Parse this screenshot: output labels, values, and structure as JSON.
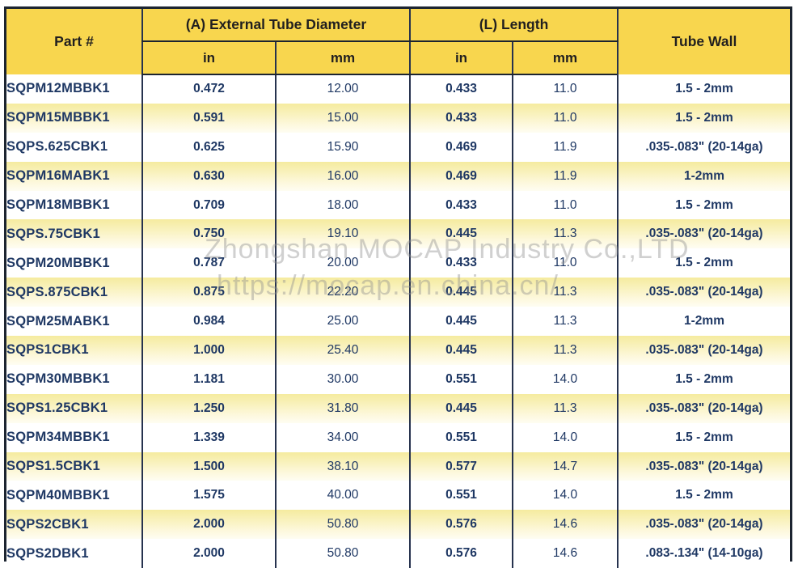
{
  "table": {
    "header": {
      "part": "Part #",
      "diameter_group": "(A) External Tube Diameter",
      "length_group": "(L) Length",
      "tube_wall": "Tube Wall",
      "in_label": "in",
      "mm_label": "mm"
    },
    "rows": [
      {
        "part": "SQPM12MBBK1",
        "dia_in": "0.472",
        "dia_mm": "12.00",
        "len_in": "0.433",
        "len_mm": "11.0",
        "wall": "1.5 - 2mm"
      },
      {
        "part": "SQPM15MBBK1",
        "dia_in": "0.591",
        "dia_mm": "15.00",
        "len_in": "0.433",
        "len_mm": "11.0",
        "wall": "1.5 - 2mm"
      },
      {
        "part": "SQPS.625CBK1",
        "dia_in": "0.625",
        "dia_mm": "15.90",
        "len_in": "0.469",
        "len_mm": "11.9",
        "wall": ".035-.083\" (20-14ga)"
      },
      {
        "part": "SQPM16MABK1",
        "dia_in": "0.630",
        "dia_mm": "16.00",
        "len_in": "0.469",
        "len_mm": "11.9",
        "wall": "1-2mm"
      },
      {
        "part": "SQPM18MBBK1",
        "dia_in": "0.709",
        "dia_mm": "18.00",
        "len_in": "0.433",
        "len_mm": "11.0",
        "wall": "1.5 - 2mm"
      },
      {
        "part": "SQPS.75CBK1",
        "dia_in": "0.750",
        "dia_mm": "19.10",
        "len_in": "0.445",
        "len_mm": "11.3",
        "wall": ".035-.083\" (20-14ga)"
      },
      {
        "part": "SQPM20MBBK1",
        "dia_in": "0.787",
        "dia_mm": "20.00",
        "len_in": "0.433",
        "len_mm": "11.0",
        "wall": "1.5 - 2mm"
      },
      {
        "part": "SQPS.875CBK1",
        "dia_in": "0.875",
        "dia_mm": "22.20",
        "len_in": "0.445",
        "len_mm": "11.3",
        "wall": ".035-.083\" (20-14ga)"
      },
      {
        "part": "SQPM25MABK1",
        "dia_in": "0.984",
        "dia_mm": "25.00",
        "len_in": "0.445",
        "len_mm": "11.3",
        "wall": "1-2mm"
      },
      {
        "part": "SQPS1CBK1",
        "dia_in": "1.000",
        "dia_mm": "25.40",
        "len_in": "0.445",
        "len_mm": "11.3",
        "wall": ".035-.083\" (20-14ga)"
      },
      {
        "part": "SQPM30MBBK1",
        "dia_in": "1.181",
        "dia_mm": "30.00",
        "len_in": "0.551",
        "len_mm": "14.0",
        "wall": "1.5 - 2mm"
      },
      {
        "part": "SQPS1.25CBK1",
        "dia_in": "1.250",
        "dia_mm": "31.80",
        "len_in": "0.445",
        "len_mm": "11.3",
        "wall": ".035-.083\" (20-14ga)"
      },
      {
        "part": "SQPM34MBBK1",
        "dia_in": "1.339",
        "dia_mm": "34.00",
        "len_in": "0.551",
        "len_mm": "14.0",
        "wall": "1.5 - 2mm"
      },
      {
        "part": "SQPS1.5CBK1",
        "dia_in": "1.500",
        "dia_mm": "38.10",
        "len_in": "0.577",
        "len_mm": "14.7",
        "wall": ".035-.083\" (20-14ga)"
      },
      {
        "part": "SQPM40MBBK1",
        "dia_in": "1.575",
        "dia_mm": "40.00",
        "len_in": "0.551",
        "len_mm": "14.0",
        "wall": "1.5 - 2mm"
      },
      {
        "part": "SQPS2CBK1",
        "dia_in": "2.000",
        "dia_mm": "50.80",
        "len_in": "0.576",
        "len_mm": "14.6",
        "wall": ".035-.083\" (20-14ga)"
      },
      {
        "part": "SQPS2DBK1",
        "dia_in": "2.000",
        "dia_mm": "50.80",
        "len_in": "0.576",
        "len_mm": "14.6",
        "wall": ".083-.134\" (14-10ga)"
      }
    ]
  },
  "watermark": {
    "line1": "Zhongshan MOCAP Industry Co.,LTD",
    "line2": "https://mocap.en.china.cn/"
  },
  "colors": {
    "header_bg": "#f8d64e",
    "header_text": "#211f1f",
    "navy_text": "#1f3864",
    "border_outer": "#1c2430",
    "border_inner": "#26324e",
    "row_stripe_top": "#f5eb9f",
    "row_stripe_bottom": "#fefdf2"
  },
  "chart_data": {
    "type": "table",
    "title": "",
    "columns": [
      "Part #",
      "(A) External Tube Diameter in",
      "(A) External Tube Diameter mm",
      "(L) Length in",
      "(L) Length mm",
      "Tube Wall"
    ],
    "rows": [
      [
        "SQPM12MBBK1",
        0.472,
        12.0,
        0.433,
        11.0,
        "1.5 - 2mm"
      ],
      [
        "SQPM15MBBK1",
        0.591,
        15.0,
        0.433,
        11.0,
        "1.5 - 2mm"
      ],
      [
        "SQPS.625CBK1",
        0.625,
        15.9,
        0.469,
        11.9,
        ".035-.083\" (20-14ga)"
      ],
      [
        "SQPM16MABK1",
        0.63,
        16.0,
        0.469,
        11.9,
        "1-2mm"
      ],
      [
        "SQPM18MBBK1",
        0.709,
        18.0,
        0.433,
        11.0,
        "1.5 - 2mm"
      ],
      [
        "SQPS.75CBK1",
        0.75,
        19.1,
        0.445,
        11.3,
        ".035-.083\" (20-14ga)"
      ],
      [
        "SQPM20MBBK1",
        0.787,
        20.0,
        0.433,
        11.0,
        "1.5 - 2mm"
      ],
      [
        "SQPS.875CBK1",
        0.875,
        22.2,
        0.445,
        11.3,
        ".035-.083\" (20-14ga)"
      ],
      [
        "SQPM25MABK1",
        0.984,
        25.0,
        0.445,
        11.3,
        "1-2mm"
      ],
      [
        "SQPS1CBK1",
        1.0,
        25.4,
        0.445,
        11.3,
        ".035-.083\" (20-14ga)"
      ],
      [
        "SQPM30MBBK1",
        1.181,
        30.0,
        0.551,
        14.0,
        "1.5 - 2mm"
      ],
      [
        "SQPS1.25CBK1",
        1.25,
        31.8,
        0.445,
        11.3,
        ".035-.083\" (20-14ga)"
      ],
      [
        "SQPM34MBBK1",
        1.339,
        34.0,
        0.551,
        14.0,
        "1.5 - 2mm"
      ],
      [
        "SQPS1.5CBK1",
        1.5,
        38.1,
        0.577,
        14.7,
        ".035-.083\" (20-14ga)"
      ],
      [
        "SQPM40MBBK1",
        1.575,
        40.0,
        0.551,
        14.0,
        "1.5 - 2mm"
      ],
      [
        "SQPS2CBK1",
        2.0,
        50.8,
        0.576,
        14.6,
        ".035-.083\" (20-14ga)"
      ],
      [
        "SQPS2DBK1",
        2.0,
        50.8,
        0.576,
        14.6,
        ".083-.134\" (14-10ga)"
      ]
    ]
  }
}
